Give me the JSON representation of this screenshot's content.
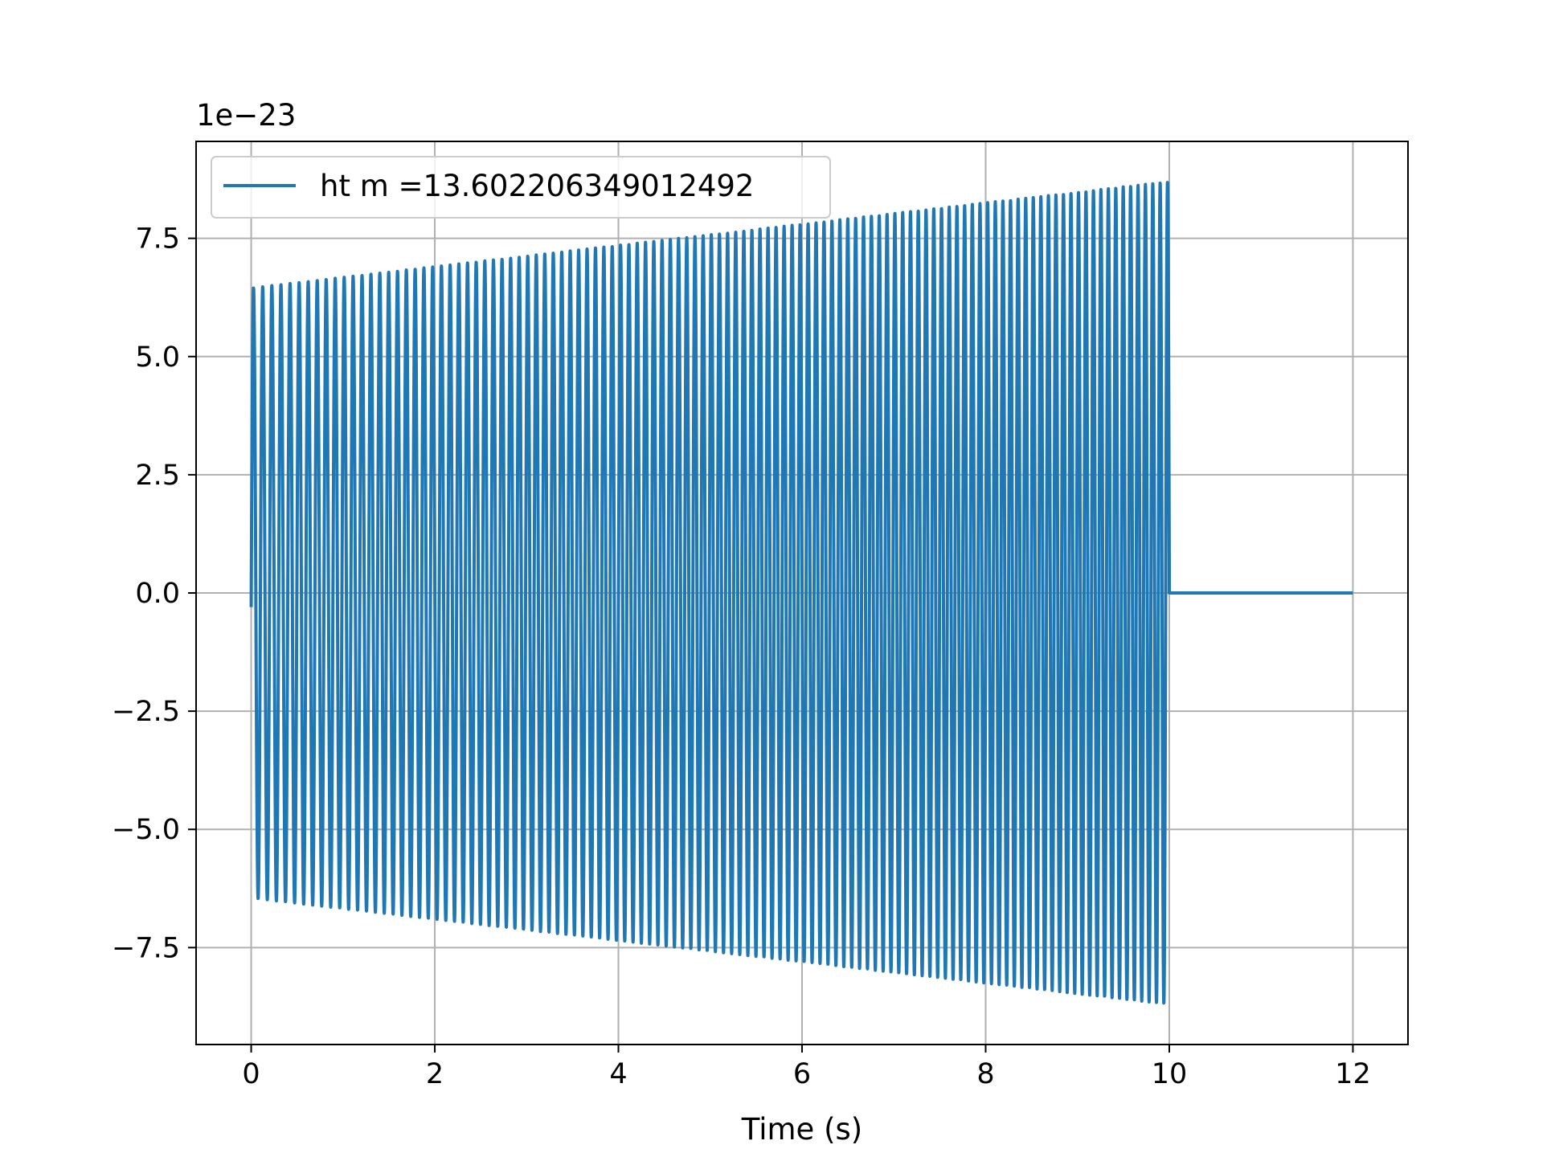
{
  "chart_data": {
    "type": "line",
    "xlabel": "Time (s)",
    "ylabel": "",
    "offset_text": "1e−23",
    "xlim": [
      -0.6,
      12.6
    ],
    "ylim": [
      -9.55,
      9.55
    ],
    "x_ticks": [
      0,
      2,
      4,
      6,
      8,
      10,
      12
    ],
    "x_tick_labels": [
      "0",
      "2",
      "4",
      "6",
      "8",
      "10",
      "12"
    ],
    "y_ticks": [
      -7.5,
      -5.0,
      -2.5,
      0.0,
      2.5,
      5.0,
      7.5
    ],
    "y_tick_labels": [
      "−7.5",
      "−5.0",
      "−2.5",
      "0.0",
      "2.5",
      "5.0",
      "7.5"
    ],
    "y_scale_factor": 1e-23,
    "grid": true,
    "legend_position": "upper-left",
    "color": "#1f77b4",
    "series": [
      {
        "name": "ht m =13.602206349012492",
        "description_points": {
          "t_start": 0.0,
          "t_signal_end": 10.0,
          "t_end": 12.0,
          "start_value": -0.3,
          "amplitude_start": 6.45,
          "amplitude_end": 8.7,
          "frequency_start_hz": 10.0,
          "frequency_end_hz": 12.5,
          "value_after_end": 0.0
        }
      }
    ]
  }
}
